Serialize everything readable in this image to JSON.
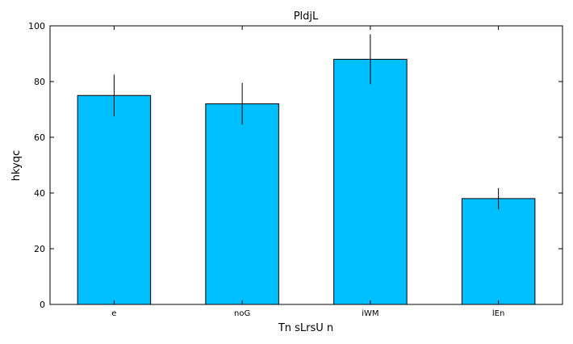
{
  "chart_data": {
    "type": "bar",
    "title": "PldjL",
    "xlabel": "Tn sLrsU n",
    "ylabel": "hkyqc",
    "categories": [
      "e",
      "noG",
      "iWM",
      "lEn"
    ],
    "values": [
      75,
      72,
      88,
      38
    ],
    "errors": [
      7.5,
      7.5,
      9,
      3.8
    ],
    "ylim": [
      0,
      100
    ],
    "yticks": [
      0,
      20,
      40,
      60,
      80,
      100
    ],
    "bar_color": "#00bfff",
    "grid": false
  }
}
